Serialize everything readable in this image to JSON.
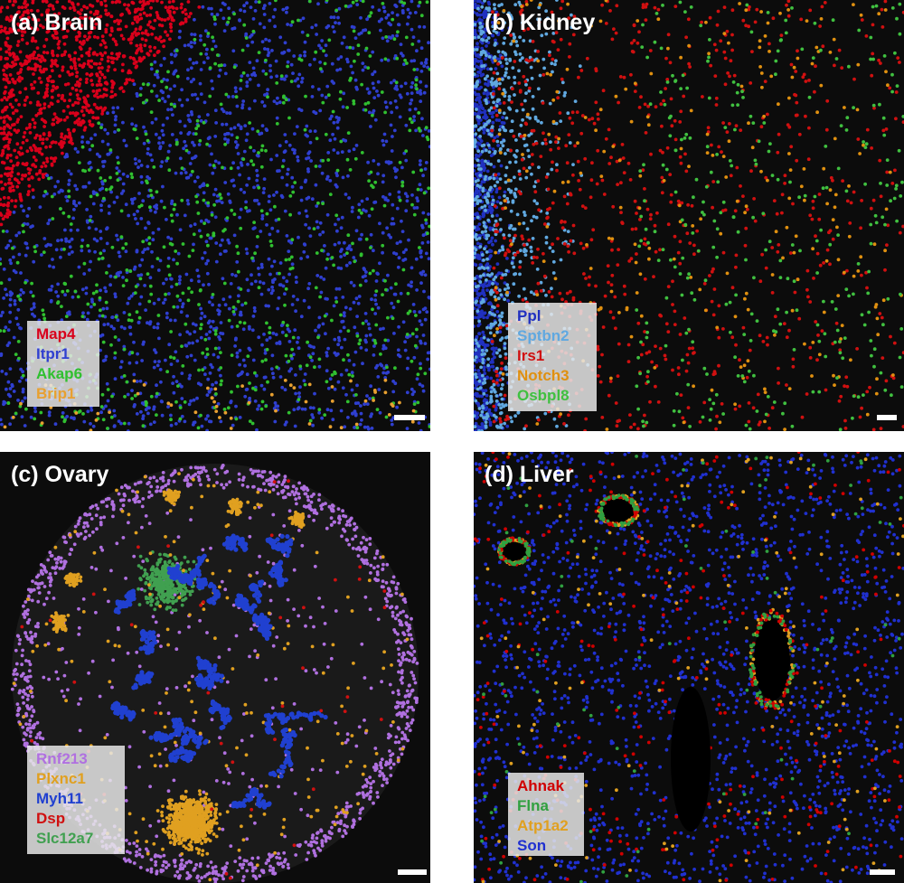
{
  "panels": [
    {
      "label": "(a) Brain",
      "legend": [
        {
          "name": "Map4",
          "color": "#d9001b"
        },
        {
          "name": "Itpr1",
          "color": "#2f3fd0"
        },
        {
          "name": "Akap6",
          "color": "#30c030"
        },
        {
          "name": "Brip1",
          "color": "#e8a030"
        }
      ]
    },
    {
      "label": "(b) Kidney",
      "legend": [
        {
          "name": "Ppl",
          "color": "#2030c0"
        },
        {
          "name": "Sptbn2",
          "color": "#60a8e0"
        },
        {
          "name": "Irs1",
          "color": "#d01010"
        },
        {
          "name": "Notch3",
          "color": "#e09010"
        },
        {
          "name": "Osbpl8",
          "color": "#40c040"
        }
      ]
    },
    {
      "label": "(c) Ovary",
      "legend": [
        {
          "name": "Rnf213",
          "color": "#b070e0"
        },
        {
          "name": "Plxnc1",
          "color": "#e0a020"
        },
        {
          "name": "Myh11",
          "color": "#2040d0"
        },
        {
          "name": "Dsp",
          "color": "#d01010"
        },
        {
          "name": "Slc12a7",
          "color": "#40a050"
        }
      ]
    },
    {
      "label": "(d) Liver",
      "legend": [
        {
          "name": "Ahnak",
          "color": "#d00000"
        },
        {
          "name": "Flna",
          "color": "#30a040"
        },
        {
          "name": "Atp1a2",
          "color": "#e0a020"
        },
        {
          "name": "Son",
          "color": "#2030d0"
        }
      ]
    }
  ]
}
